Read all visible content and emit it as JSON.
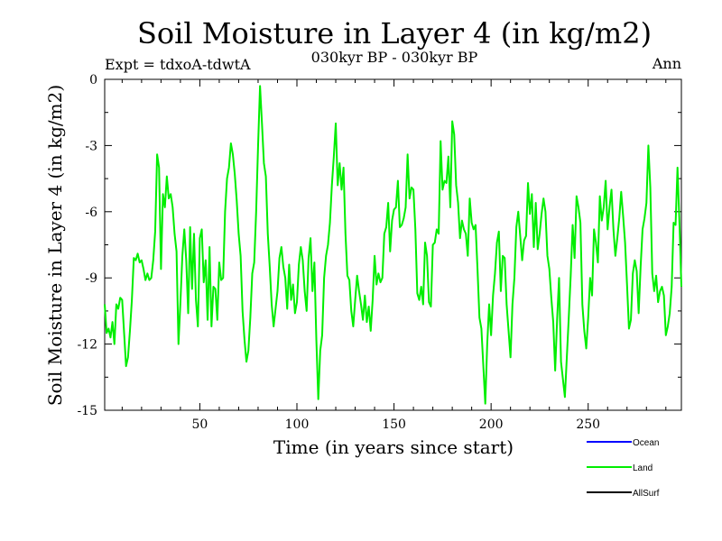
{
  "chart_data": {
    "type": "line",
    "title": "Soil Moisture in Layer 4 (in kg/m2)",
    "subtitle": "030kyr BP - 030kyr BP",
    "experiment_label": "Expt = tdxoA-tdwtA",
    "season_label": "Ann",
    "xlabel": "Time (in years since start)",
    "ylabel": "Soil Moisture in Layer 4 (in kg/m2)",
    "xlim": [
      1,
      298
    ],
    "ylim": [
      -15,
      0
    ],
    "x_ticks": [
      50,
      100,
      150,
      200,
      250
    ],
    "y_ticks": [
      0,
      -3,
      -6,
      -9,
      -12,
      -15
    ],
    "grid": false,
    "legend_position": "bottom-right",
    "legend": [
      {
        "name": "Ocean",
        "color": "#0000ff"
      },
      {
        "name": "Land",
        "color": "#00ee00"
      },
      {
        "name": "AllSurf",
        "color": "#000000"
      }
    ],
    "series": [
      {
        "name": "Land",
        "color": "#00ee00",
        "x_start": 1,
        "x_step": 1,
        "values": [
          -10.2,
          -11.5,
          -11.3,
          -11.7,
          -11.0,
          -12.0,
          -10.2,
          -10.4,
          -9.9,
          -10.0,
          -11.5,
          -13.0,
          -12.6,
          -11.4,
          -10.0,
          -8.1,
          -8.2,
          -7.9,
          -8.3,
          -8.2,
          -8.6,
          -9.1,
          -8.8,
          -9.1,
          -9.0,
          -8.2,
          -6.9,
          -3.4,
          -4.0,
          -8.6,
          -5.2,
          -5.8,
          -4.4,
          -5.4,
          -5.2,
          -5.8,
          -7.0,
          -7.8,
          -12.0,
          -10.1,
          -8.0,
          -6.8,
          -8.2,
          -10.6,
          -6.7,
          -9.5,
          -7.0,
          -10.0,
          -11.2,
          -7.2,
          -6.8,
          -9.2,
          -8.2,
          -10.9,
          -7.6,
          -11.2,
          -9.4,
          -9.5,
          -10.9,
          -8.3,
          -9.1,
          -9.0,
          -6.0,
          -4.5,
          -4.0,
          -2.9,
          -3.4,
          -4.3,
          -5.5,
          -7.0,
          -8.0,
          -10.5,
          -11.8,
          -12.8,
          -12.3,
          -10.8,
          -8.8,
          -8.3,
          -6.0,
          -3.0,
          -0.3,
          -2.0,
          -3.8,
          -4.4,
          -7.0,
          -8.5,
          -10.2,
          -11.2,
          -10.4,
          -9.6,
          -8.1,
          -7.6,
          -8.5,
          -9.0,
          -10.4,
          -8.4,
          -10.0,
          -9.3,
          -10.6,
          -10.1,
          -8.4,
          -7.6,
          -8.2,
          -9.6,
          -10.5,
          -8.1,
          -7.2,
          -9.6,
          -8.3,
          -11.8,
          -14.5,
          -12.3,
          -11.6,
          -9.0,
          -8.0,
          -7.5,
          -6.5,
          -4.8,
          -3.5,
          -2.0,
          -4.8,
          -3.8,
          -5.0,
          -4.0,
          -7.0,
          -8.9,
          -9.1,
          -10.5,
          -11.2,
          -10.0,
          -8.9,
          -9.6,
          -10.2,
          -10.9,
          -9.8,
          -11.0,
          -10.3,
          -11.4,
          -10.0,
          -8.0,
          -9.3,
          -8.8,
          -9.2,
          -9.0,
          -7.0,
          -6.7,
          -5.6,
          -7.8,
          -6.4,
          -5.9,
          -5.8,
          -4.6,
          -6.7,
          -6.6,
          -6.3,
          -5.8,
          -3.4,
          -5.4,
          -4.9,
          -5.0,
          -6.8,
          -9.7,
          -10.0,
          -9.4,
          -10.2,
          -7.4,
          -8.0,
          -10.1,
          -10.3,
          -7.5,
          -7.4,
          -6.8,
          -7.0,
          -2.8,
          -5.0,
          -4.6,
          -4.7,
          -3.5,
          -5.8,
          -1.9,
          -2.5,
          -4.8,
          -5.6,
          -7.2,
          -6.4,
          -6.8,
          -7.0,
          -8.0,
          -5.4,
          -6.5,
          -6.8,
          -6.6,
          -8.6,
          -10.8,
          -11.3,
          -13.0,
          -14.7,
          -12.0,
          -10.2,
          -11.6,
          -9.8,
          -8.8,
          -7.4,
          -6.9,
          -9.6,
          -8.0,
          -8.1,
          -10.2,
          -11.4,
          -12.6,
          -10.2,
          -9.0,
          -6.7,
          -6.0,
          -7.1,
          -8.2,
          -7.3,
          -7.1,
          -4.7,
          -6.1,
          -5.2,
          -7.6,
          -5.6,
          -7.7,
          -7.0,
          -6.1,
          -5.4,
          -6.0,
          -8.0,
          -8.6,
          -9.9,
          -11.0,
          -13.2,
          -10.9,
          -9.0,
          -12.8,
          -13.6,
          -14.4,
          -12.6,
          -10.8,
          -8.9,
          -6.6,
          -8.1,
          -5.3,
          -5.8,
          -6.5,
          -10.2,
          -11.4,
          -12.2,
          -10.8,
          -9.0,
          -9.8,
          -6.8,
          -7.4,
          -8.3,
          -5.3,
          -6.4,
          -5.8,
          -4.6,
          -6.8,
          -5.8,
          -5.0,
          -6.8,
          -8.0,
          -7.2,
          -6.3,
          -5.1,
          -6.2,
          -7.4,
          -9.3,
          -11.3,
          -10.9,
          -8.8,
          -8.2,
          -8.7,
          -10.6,
          -8.5,
          -6.8,
          -6.3,
          -5.6,
          -3.0,
          -4.9,
          -8.8,
          -9.6,
          -8.9,
          -10.1,
          -9.6,
          -9.4,
          -9.8,
          -11.6,
          -11.2,
          -10.6,
          -9.4,
          -6.5,
          -6.6,
          -4.0,
          -6.5,
          -9.4
        ]
      },
      {
        "name": "Ocean",
        "color": "#0000ff",
        "values": []
      },
      {
        "name": "AllSurf",
        "color": "#000000",
        "values": []
      }
    ]
  }
}
